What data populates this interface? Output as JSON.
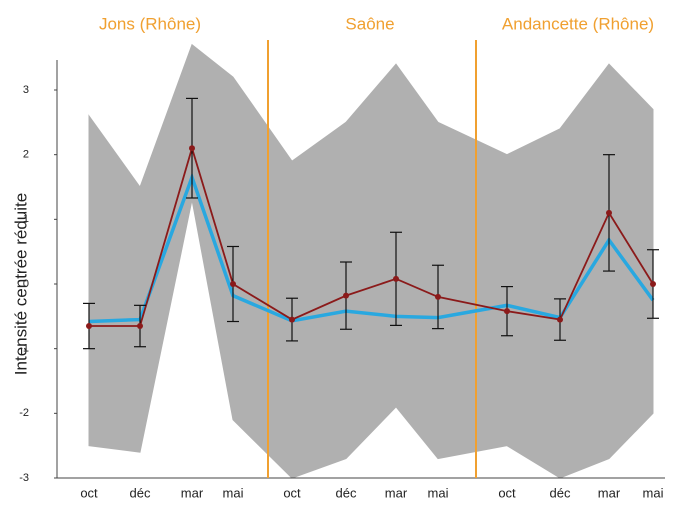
{
  "chart_data": {
    "type": "line",
    "panels": [
      {
        "title": "Jons (Rhône)"
      },
      {
        "title": "Saône"
      },
      {
        "title": "Andancette (Rhône)"
      }
    ],
    "panel_title_color": "#f0a030",
    "separator_color": "#f0a030",
    "ylabel": "Intensité centrée réduite",
    "categories": [
      "oct",
      "déc",
      "mar",
      "mai",
      "oct",
      "déc",
      "mar",
      "mai",
      "oct",
      "déc",
      "mar",
      "mai"
    ],
    "envelope": {
      "color": "#b0b0b0",
      "upper": [
        2.6,
        1.5,
        3.7,
        3.2,
        1.9,
        2.5,
        3.4,
        2.5,
        2.0,
        2.4,
        3.4,
        2.7
      ],
      "lower": [
        -2.5,
        -2.6,
        1.3,
        -2.1,
        -3.0,
        -2.7,
        -1.9,
        -2.7,
        -2.5,
        -3.0,
        -2.7,
        -2.0
      ]
    },
    "series": [
      {
        "color": "#29a8e0",
        "values": [
          -0.58,
          -0.55,
          1.65,
          -0.18,
          -0.57,
          -0.42,
          -0.5,
          -0.52,
          -0.33,
          -0.52,
          0.68,
          -0.25
        ]
      },
      {
        "color": "#8b1a1a",
        "values": [
          -0.65,
          -0.65,
          2.1,
          0.0,
          -0.55,
          -0.18,
          0.08,
          -0.2,
          -0.42,
          -0.55,
          1.1,
          0.0
        ],
        "errors": [
          0.35,
          0.32,
          0.77,
          0.58,
          0.33,
          0.52,
          0.72,
          0.49,
          0.38,
          0.32,
          0.9,
          0.53
        ]
      }
    ],
    "ylim": [
      -3,
      3
    ],
    "yticks": [
      -3,
      -2,
      -1,
      0,
      1,
      2,
      3
    ]
  }
}
